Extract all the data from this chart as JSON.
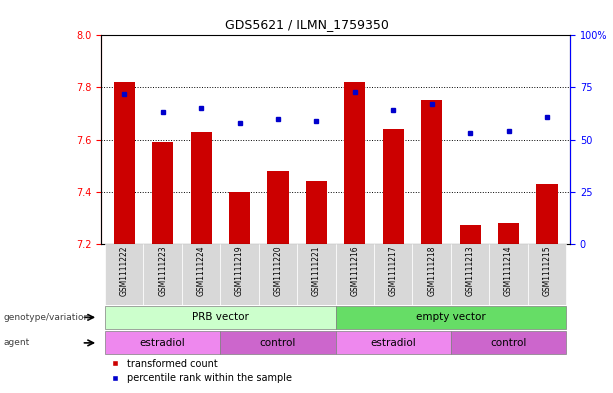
{
  "title": "GDS5621 / ILMN_1759350",
  "samples": [
    "GSM1111222",
    "GSM1111223",
    "GSM1111224",
    "GSM1111219",
    "GSM1111220",
    "GSM1111221",
    "GSM1111216",
    "GSM1111217",
    "GSM1111218",
    "GSM1111213",
    "GSM1111214",
    "GSM1111215"
  ],
  "transformed_counts": [
    7.82,
    7.59,
    7.63,
    7.4,
    7.48,
    7.44,
    7.82,
    7.64,
    7.75,
    7.27,
    7.28,
    7.43
  ],
  "percentile_ranks": [
    72,
    63,
    65,
    58,
    60,
    59,
    73,
    64,
    67,
    53,
    54,
    61
  ],
  "ylim_left": [
    7.2,
    8.0
  ],
  "ylim_right": [
    0,
    100
  ],
  "yticks_left": [
    7.2,
    7.4,
    7.6,
    7.8,
    8.0
  ],
  "yticks_right": [
    0,
    25,
    50,
    75,
    100
  ],
  "bar_color": "#cc0000",
  "dot_color": "#0000cc",
  "bar_bottom": 7.2,
  "genotype_labels": [
    {
      "label": "PRB vector",
      "start": 0,
      "end": 6,
      "color": "#ccffcc"
    },
    {
      "label": "empty vector",
      "start": 6,
      "end": 12,
      "color": "#66dd66"
    }
  ],
  "agent_labels": [
    {
      "label": "estradiol",
      "start": 0,
      "end": 3,
      "color": "#ee88ee"
    },
    {
      "label": "control",
      "start": 3,
      "end": 6,
      "color": "#cc66cc"
    },
    {
      "label": "estradiol",
      "start": 6,
      "end": 9,
      "color": "#ee88ee"
    },
    {
      "label": "control",
      "start": 9,
      "end": 12,
      "color": "#cc66cc"
    }
  ],
  "legend_items": [
    {
      "color": "#cc0000",
      "label": "transformed count"
    },
    {
      "color": "#0000cc",
      "label": "percentile rank within the sample"
    }
  ],
  "sample_bg_color": "#d8d8d8",
  "left_label_color": "#404040"
}
